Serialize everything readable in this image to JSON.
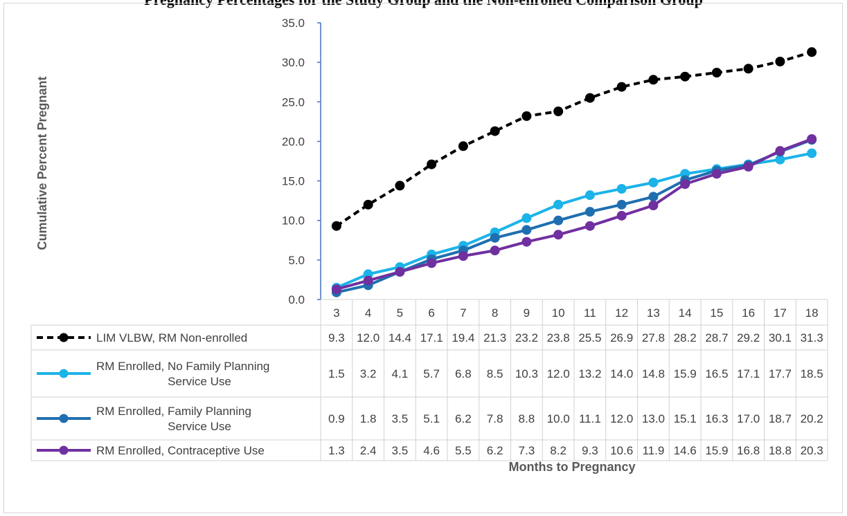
{
  "title": "Pregnancy Percentages for the Study Group and the Non-enrolled Comparison Group",
  "chart_data": {
    "type": "line",
    "xlabel": "Months to Pregnancy",
    "ylabel": "Cumulative Percent Pregnant",
    "ylim": [
      0,
      35
    ],
    "yticks": [
      "0.0",
      "5.0",
      "10.0",
      "15.0",
      "20.0",
      "25.0",
      "30.0",
      "35.0"
    ],
    "categories": [
      "3",
      "4",
      "5",
      "6",
      "7",
      "8",
      "9",
      "10",
      "11",
      "12",
      "13",
      "14",
      "15",
      "16",
      "17",
      "18"
    ],
    "grid": false,
    "legend": "data-table",
    "series": [
      {
        "name": "LIM VLBW, RM Non-enrolled",
        "label_lines": [
          "LIM VLBW, RM Non-enrolled"
        ],
        "color": "#000000",
        "dashed": true,
        "values": [
          9.3,
          12.0,
          14.4,
          17.1,
          19.4,
          21.3,
          23.2,
          23.8,
          25.5,
          26.9,
          27.8,
          28.2,
          28.7,
          29.2,
          30.1,
          31.3
        ],
        "labels": [
          "9.3",
          "12.0",
          "14.4",
          "17.1",
          "19.4",
          "21.3",
          "23.2",
          "23.8",
          "25.5",
          "26.9",
          "27.8",
          "28.2",
          "28.7",
          "29.2",
          "30.1",
          "31.3"
        ]
      },
      {
        "name": "RM Enrolled, No Family Planning Service Use",
        "label_lines": [
          "RM Enrolled, No Family Planning",
          "Service Use"
        ],
        "color": "#1CB3E8",
        "dashed": false,
        "values": [
          1.5,
          3.2,
          4.1,
          5.7,
          6.8,
          8.5,
          10.3,
          12.0,
          13.2,
          14.0,
          14.8,
          15.9,
          16.5,
          17.1,
          17.7,
          18.5
        ],
        "labels": [
          "1.5",
          "3.2",
          "4.1",
          "5.7",
          "6.8",
          "8.5",
          "10.3",
          "12.0",
          "13.2",
          "14.0",
          "14.8",
          "15.9",
          "16.5",
          "17.1",
          "17.7",
          "18.5"
        ]
      },
      {
        "name": "RM Enrolled, Family Planning Service Use",
        "label_lines": [
          "RM Enrolled, Family Planning",
          "Service Use"
        ],
        "color": "#1F6FB0",
        "dashed": false,
        "values": [
          0.9,
          1.8,
          3.5,
          5.1,
          6.2,
          7.8,
          8.8,
          10.0,
          11.1,
          12.0,
          13.0,
          15.1,
          16.3,
          17.0,
          18.7,
          20.2
        ],
        "labels": [
          "0.9",
          "1.8",
          "3.5",
          "5.1",
          "6.2",
          "7.8",
          "8.8",
          "10.0",
          "11.1",
          "12.0",
          "13.0",
          "15.1",
          "16.3",
          "17.0",
          "18.7",
          "20.2"
        ]
      },
      {
        "name": "RM Enrolled, Contraceptive Use",
        "label_lines": [
          "RM Enrolled, Contraceptive Use"
        ],
        "color": "#7030A0",
        "dashed": false,
        "values": [
          1.3,
          2.4,
          3.5,
          4.6,
          5.5,
          6.2,
          7.3,
          8.2,
          9.3,
          10.6,
          11.9,
          14.6,
          15.9,
          16.8,
          18.8,
          20.3
        ],
        "labels": [
          "1.3",
          "2.4",
          "3.5",
          "4.6",
          "5.5",
          "6.2",
          "7.3",
          "8.2",
          "9.3",
          "10.6",
          "11.9",
          "14.6",
          "15.9",
          "16.8",
          "18.8",
          "20.3"
        ]
      }
    ]
  }
}
